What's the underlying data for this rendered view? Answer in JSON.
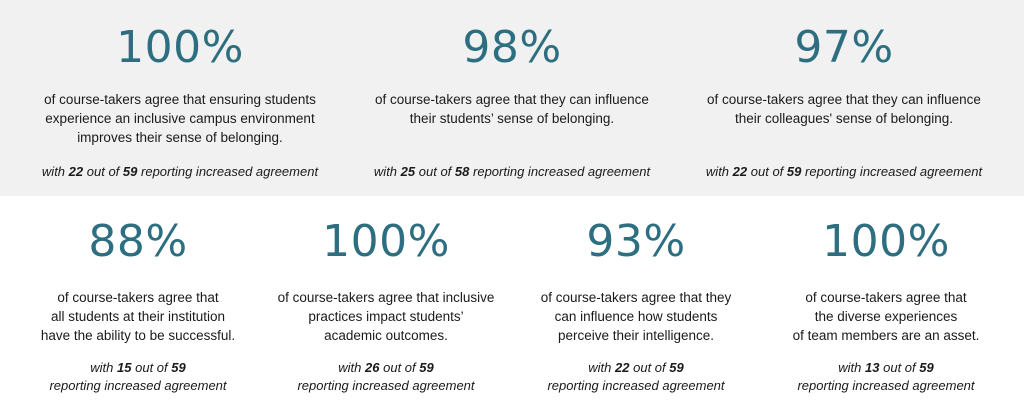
{
  "stats": [
    {
      "percent": "100%",
      "description": "of course-takers agree that ensuring students\nexperience an inclusive campus environment\nimproves their sense of belonging.",
      "note_prefix": "with",
      "reported": "22",
      "note_mid": "out of",
      "total": "59",
      "note_suffix": "reporting increased agreement"
    },
    {
      "percent": "98%",
      "description": "of course-takers agree that they can influence\ntheir students’ sense of belonging.",
      "note_prefix": "with",
      "reported": "25",
      "note_mid": "out of",
      "total": "58",
      "note_suffix": "reporting increased agreement"
    },
    {
      "percent": "97%",
      "description": "of course-takers agree that they can influence\ntheir colleagues' sense of belonging.",
      "note_prefix": "with",
      "reported": "22",
      "note_mid": "out of",
      "total": "59",
      "note_suffix": "reporting increased agreement"
    },
    {
      "percent": "88%",
      "description": "of course-takers agree that\nall students at their institution\nhave the ability to be successful.",
      "note_prefix": "with",
      "reported": "15",
      "note_mid": "out of",
      "total": "59",
      "note_suffix": "reporting increased agreement"
    },
    {
      "percent": "100%",
      "description": "of course-takers agree that inclusive\npractices impact students’\nacademic outcomes.",
      "note_prefix": "with",
      "reported": "26",
      "note_mid": "out of",
      "total": "59",
      "note_suffix": "reporting increased agreement"
    },
    {
      "percent": "93%",
      "description": "of course-takers agree that they\ncan influence how students\nperceive their intelligence.",
      "note_prefix": "with",
      "reported": "22",
      "note_mid": "out of",
      "total": "59",
      "note_suffix": "reporting increased agreement"
    },
    {
      "percent": "100%",
      "description": "of course-takers agree that\nthe diverse experiences\nof team members are an asset.",
      "note_prefix": "with",
      "reported": "13",
      "note_mid": "out of",
      "total": "59",
      "note_suffix": "reporting increased agreement"
    }
  ]
}
